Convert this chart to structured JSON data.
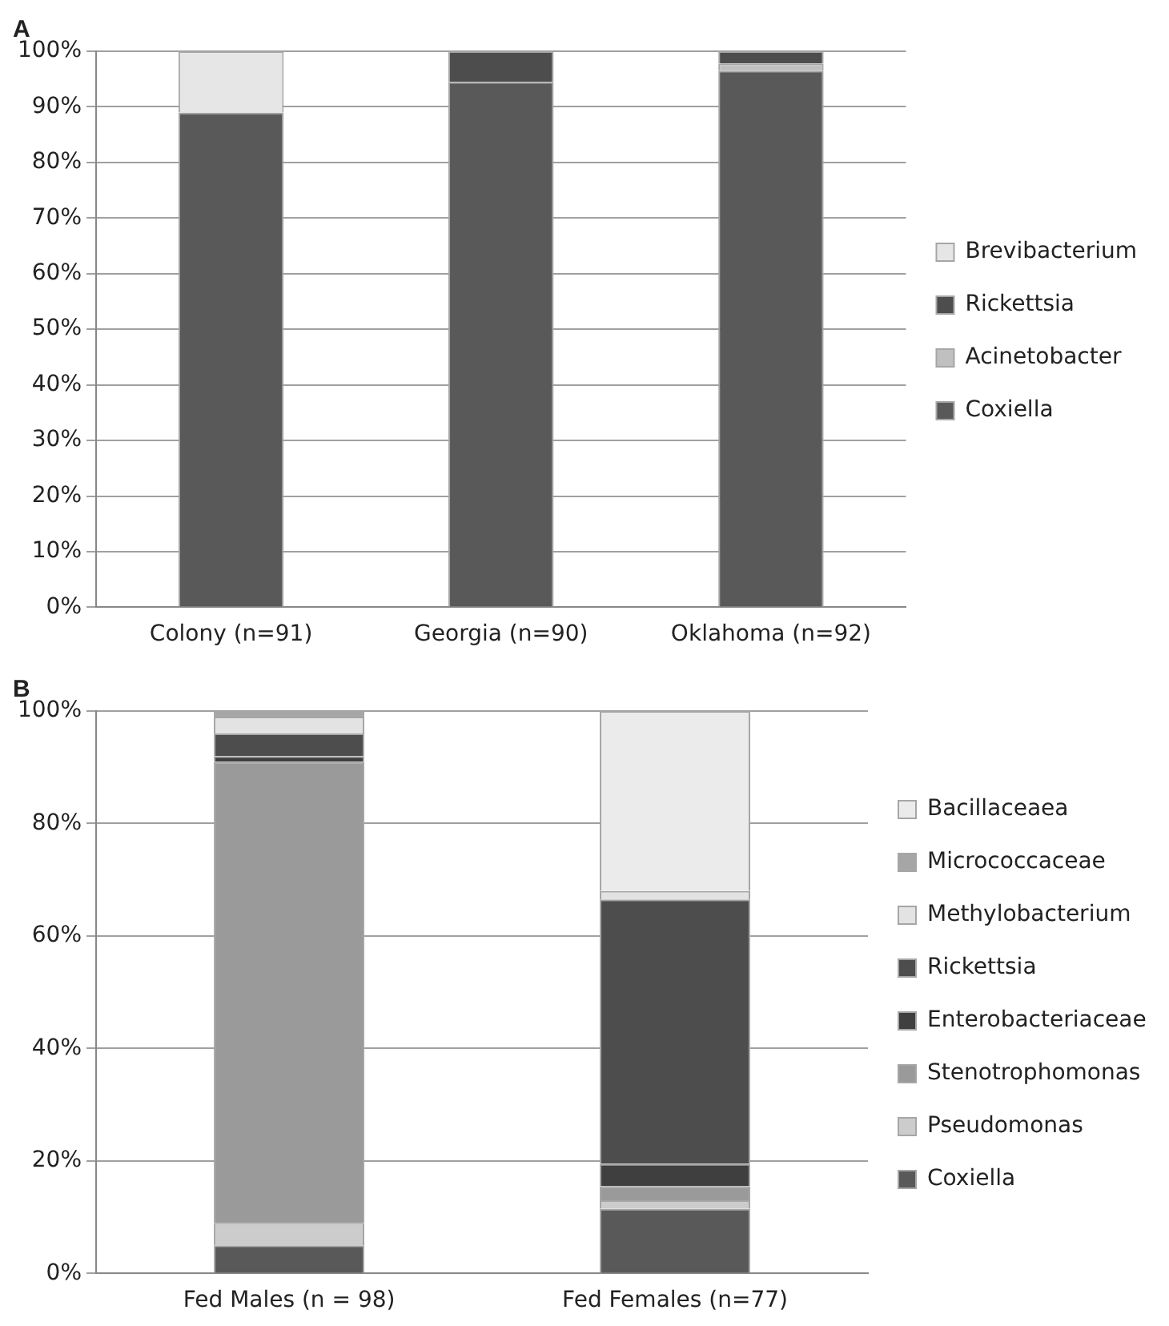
{
  "chart_data": [
    {
      "type": "bar",
      "title": "A",
      "stacked": true,
      "grid": "y",
      "legend": "right",
      "categories": [
        "Colony (n=91)",
        "Georgia (n=90)",
        "Oklahoma (n=92)"
      ],
      "series": [
        {
          "name": "Coxiella",
          "color": "#595959",
          "values": [
            89,
            94.5,
            96.5
          ]
        },
        {
          "name": "Acinetobacter",
          "color": "#c0c0c0",
          "values": [
            0,
            0,
            1.3
          ]
        },
        {
          "name": "Rickettsia",
          "color": "#4d4d4d",
          "values": [
            0,
            5.5,
            2.2
          ]
        },
        {
          "name": "Brevibacterium",
          "color": "#e6e6e6",
          "values": [
            11,
            0,
            0
          ]
        }
      ],
      "ylim": [
        0,
        100
      ],
      "yticks": [
        {
          "value": 0,
          "label": "0%"
        },
        {
          "value": 10,
          "label": "10%"
        },
        {
          "value": 20,
          "label": "20%"
        },
        {
          "value": 30,
          "label": "30%"
        },
        {
          "value": 40,
          "label": "40%"
        },
        {
          "value": 50,
          "label": "50%"
        },
        {
          "value": 60,
          "label": "60%"
        },
        {
          "value": 70,
          "label": "70%"
        },
        {
          "value": 80,
          "label": "80%"
        },
        {
          "value": 90,
          "label": "90%"
        },
        {
          "value": 100,
          "label": "100%"
        }
      ]
    },
    {
      "type": "bar",
      "title": "B",
      "stacked": true,
      "grid": "y",
      "legend": "right",
      "categories": [
        "Fed Males (n = 98)",
        "Fed Females (n=77)"
      ],
      "series": [
        {
          "name": "Coxiella",
          "color": "#595959",
          "values": [
            5,
            11.5
          ]
        },
        {
          "name": "Pseudomonas",
          "color": "#cccccc",
          "values": [
            4,
            1.5
          ]
        },
        {
          "name": "Stenotrophomonas",
          "color": "#9a9a9a",
          "values": [
            82,
            2.5
          ]
        },
        {
          "name": "Enterobacteriaceae",
          "color": "#3f3f3f",
          "values": [
            1,
            4
          ]
        },
        {
          "name": "Rickettsia",
          "color": "#4d4d4d",
          "values": [
            4,
            47
          ]
        },
        {
          "name": "Methylobacterium",
          "color": "#e3e3e3",
          "values": [
            3,
            1.5
          ]
        },
        {
          "name": "Micrococcaceae",
          "color": "#a6a6a6",
          "values": [
            1,
            0
          ]
        },
        {
          "name": "Bacillaceaea",
          "color": "#ebebeb",
          "values": [
            0,
            32
          ]
        }
      ],
      "ylim": [
        0,
        100
      ],
      "yticks": [
        {
          "value": 0,
          "label": "0%"
        },
        {
          "value": 20,
          "label": "20%"
        },
        {
          "value": 40,
          "label": "40%"
        },
        {
          "value": 60,
          "label": "60%"
        },
        {
          "value": 80,
          "label": "80%"
        },
        {
          "value": 100,
          "label": "100%"
        }
      ]
    }
  ]
}
